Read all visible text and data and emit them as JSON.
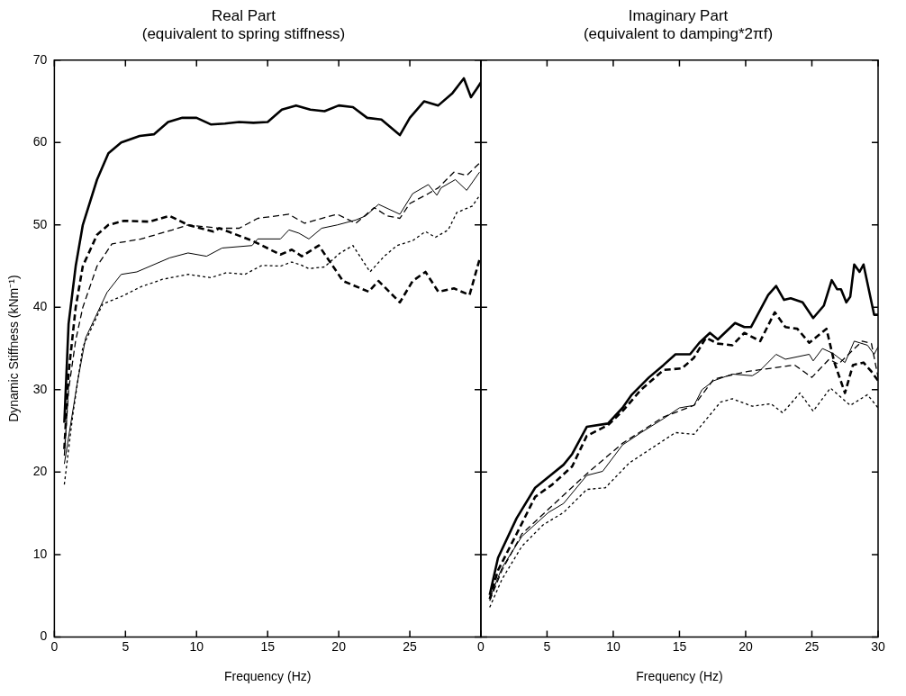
{
  "chart_data": [
    {
      "type": "line",
      "title": "Real Part\n(equivalent to spring stiffness)",
      "xlabel": "Frequency (Hz)",
      "ylabel": "Dynamic Stiffness (kNm⁻¹)",
      "marker": "none",
      "xlim": [
        0,
        30
      ],
      "xticks": [
        0,
        5,
        10,
        15,
        20,
        25,
        {
          "value": 30,
          "label": null
        }
      ],
      "ylim": [
        0,
        70
      ],
      "yticks": [
        0,
        10,
        20,
        30,
        40,
        50,
        60,
        70
      ],
      "series": [
        {
          "color": "#000000",
          "line_style": "solid",
          "x": [
            0.7,
            1,
            1.5,
            2,
            3,
            3.8,
            4.7,
            6,
            7,
            8,
            9,
            10,
            11,
            12,
            13,
            14,
            15,
            16,
            17,
            18,
            19,
            20,
            21,
            22,
            23,
            24.3,
            25,
            26,
            27,
            28,
            28.8,
            29.3,
            29.7,
            30
          ],
          "values": [
            26,
            38,
            45,
            50,
            55.5,
            58.7,
            60,
            60.8,
            61,
            62.5,
            63,
            63,
            62.2,
            62.3,
            62.5,
            62.4,
            62.5,
            64,
            64.5,
            64,
            63.8,
            64.5,
            64.3,
            63,
            62.8,
            60.9,
            63,
            65,
            64.5,
            66,
            67.8,
            65.5,
            66.5,
            67.3
          ]
        },
        {
          "color": "#000000",
          "line_style": "dashed",
          "x": [
            0.7,
            1,
            1.5,
            2,
            3,
            3.8,
            4.9,
            6.7,
            8.1,
            9.4,
            11.2,
            11.6,
            13.9,
            15.9,
            16.7,
            17.4,
            18.6,
            20.3,
            22.1,
            22.8,
            24.3,
            25.2,
            26.1,
            27,
            28.1,
            29.2,
            29.9
          ],
          "values": [
            22.8,
            32,
            40,
            45,
            48.8,
            50,
            50.5,
            50.4,
            51.1,
            50,
            49.2,
            49.6,
            48.1,
            46.4,
            47,
            46.2,
            47.5,
            43.2,
            41.9,
            43.2,
            40.6,
            43.2,
            44.3,
            41.9,
            42.3,
            41.5,
            45.8
          ]
        },
        {
          "color": "#000000",
          "line_style": "solid",
          "x": [
            0.7,
            1.6,
            2.2,
            3.7,
            4.7,
            5.8,
            8.1,
            9.4,
            10.7,
            11.8,
            13.9,
            14.3,
            15.9,
            16.5,
            17.2,
            17.9,
            18.8,
            19.9,
            21.2,
            21.9,
            22.8,
            24.3,
            25.2,
            26.3,
            26.9,
            27.2,
            28.2,
            29,
            29.9
          ],
          "values": [
            21,
            30.7,
            36.3,
            41.8,
            44,
            44.3,
            46,
            46.6,
            46.2,
            47.2,
            47.5,
            48.3,
            48.3,
            49.4,
            49,
            48.3,
            49.6,
            50,
            50.6,
            51.1,
            52.5,
            51.3,
            53.8,
            54.9,
            53.6,
            54.5,
            55.5,
            54.2,
            56.4
          ]
        },
        {
          "color": "#000000",
          "line_style": "dashed",
          "x": [
            0.7,
            1,
            1.5,
            2,
            3,
            4.05,
            6.1,
            8.3,
            9.4,
            11.6,
            13,
            14.3,
            16.5,
            17.6,
            18.8,
            19.9,
            21.2,
            22.5,
            23.4,
            24.3,
            25,
            26.3,
            27,
            28.1,
            29,
            29.9
          ],
          "values": [
            22,
            30,
            36,
            40,
            45,
            47.7,
            48.3,
            49.4,
            50,
            49.6,
            49.6,
            50.8,
            51.3,
            50.2,
            50.8,
            51.3,
            50.2,
            52.1,
            51.1,
            50.8,
            52.6,
            53.8,
            54.5,
            56.4,
            56,
            57.5
          ]
        },
        {
          "color": "#000000",
          "line_style": "dotted",
          "x": [
            0.7,
            1.3,
            2,
            3.4,
            4.7,
            6.1,
            7.6,
            9.4,
            11,
            12.1,
            13.4,
            14.6,
            15.9,
            16.7,
            17.4,
            17.9,
            19,
            20.1,
            21,
            22.2,
            23.2,
            24.1,
            25.2,
            26.1,
            26.8,
            27.7,
            28.3,
            29.4,
            30
          ],
          "values": [
            18.5,
            27,
            35.2,
            40.4,
            41.3,
            42.5,
            43.4,
            44,
            43.6,
            44.2,
            44,
            45.1,
            45,
            45.5,
            45.1,
            44.7,
            44.9,
            46.6,
            47.5,
            44.3,
            46.2,
            47.5,
            48.1,
            49.2,
            48.5,
            49.4,
            51.5,
            52.3,
            53.8
          ]
        }
      ]
    },
    {
      "type": "line",
      "title": "Imaginary Part\n(equivalent to damping*2πf)",
      "xlabel": "Frequency (Hz)",
      "marker": "none",
      "tick_labels": "x",
      "xlim": [
        0,
        30
      ],
      "xticks": [
        0,
        5,
        10,
        15,
        20,
        25,
        30
      ],
      "ylim": [
        0,
        70
      ],
      "yticks": [
        0,
        10,
        20,
        30,
        40,
        50,
        60,
        70
      ],
      "series": [
        {
          "color": "#000000",
          "line_style": "solid",
          "x": [
            0.67,
            1.3,
            2.7,
            4.1,
            5.4,
            6.25,
            6.9,
            8,
            9.6,
            10.7,
            11.4,
            12.7,
            13.8,
            14.7,
            15.8,
            16.5,
            17.3,
            17.9,
            19.2,
            19.9,
            20.4,
            21.7,
            22.3,
            22.9,
            23.4,
            24.3,
            25.1,
            25.9,
            26.5,
            26.9,
            27.2,
            27.6,
            27.9,
            28.2,
            28.6,
            28.9,
            29.7,
            30
          ],
          "values": [
            5.1,
            9.6,
            14.4,
            18.1,
            19.8,
            20.9,
            22.2,
            25.5,
            25.9,
            27.8,
            29.4,
            31.5,
            33,
            34.3,
            34.3,
            35.7,
            36.9,
            36.1,
            38.1,
            37.6,
            37.6,
            41.5,
            42.6,
            40.9,
            41.1,
            40.6,
            38.7,
            40.2,
            43.3,
            42.2,
            42.2,
            40.6,
            41.3,
            45.2,
            44.3,
            45.2,
            39.1,
            39.1
          ]
        },
        {
          "color": "#000000",
          "line_style": "dashed",
          "x": [
            0.67,
            1.3,
            2.7,
            4.1,
            5.4,
            6.9,
            8,
            9.6,
            10.7,
            12.1,
            13.8,
            15.2,
            16.1,
            17,
            17.9,
            19,
            19.9,
            21.1,
            22.2,
            23,
            23.9,
            24.8,
            26.1,
            26.7,
            27.5,
            28.1,
            28.9,
            29.5,
            30
          ],
          "values": [
            4.6,
            8.1,
            12.5,
            17,
            18.5,
            20.7,
            24.4,
            25.7,
            27.4,
            30,
            32.4,
            32.6,
            33.9,
            36.3,
            35.6,
            35.4,
            36.9,
            35.9,
            39.4,
            37.6,
            37.4,
            35.7,
            37.4,
            33.3,
            29.6,
            33,
            33.3,
            32.2,
            31.1
          ]
        },
        {
          "color": "#000000",
          "line_style": "solid",
          "x": [
            0.67,
            1.6,
            3.1,
            5.1,
            6.25,
            8,
            9.2,
            10.7,
            12.1,
            13.8,
            15,
            16.1,
            16.7,
            17.6,
            19,
            20.5,
            21,
            22.3,
            23,
            24.8,
            25.1,
            25.8,
            26.6,
            27.5,
            28.2,
            29.2,
            29.7,
            30
          ],
          "values": [
            4.7,
            8.4,
            12.2,
            15.1,
            16.2,
            19.6,
            20.1,
            23.3,
            24.8,
            26.5,
            27.8,
            28.1,
            30,
            31.1,
            31.9,
            31.7,
            32.2,
            34.3,
            33.7,
            34.3,
            33.5,
            35,
            34.4,
            33.3,
            35.9,
            35.4,
            34.3,
            35.2
          ]
        },
        {
          "color": "#000000",
          "line_style": "dashed",
          "x": [
            0.67,
            1.6,
            3.1,
            5.1,
            8,
            10.7,
            13.8,
            16.1,
            17.6,
            20.1,
            21.9,
            23.7,
            25,
            26.3,
            27,
            28.8,
            29.5,
            30
          ],
          "values": [
            4.4,
            8.1,
            12.5,
            15.5,
            19.8,
            23.5,
            26.7,
            28.1,
            31.3,
            32.2,
            32.6,
            33,
            31.5,
            33.7,
            33.1,
            35.9,
            35.6,
            31.5
          ]
        },
        {
          "color": "#000000",
          "line_style": "dotted",
          "x": [
            0.67,
            1.6,
            3.1,
            4.7,
            6.25,
            8,
            9.4,
            11.2,
            12.9,
            14.7,
            16.1,
            18.1,
            19,
            20.5,
            21.9,
            22.8,
            24.1,
            25.1,
            26.4,
            27.9,
            29.2,
            30
          ],
          "values": [
            3.6,
            7,
            11,
            13.6,
            15.1,
            17.9,
            18.1,
            21.1,
            22.9,
            24.8,
            24.6,
            28.5,
            28.9,
            28,
            28.3,
            27.2,
            29.6,
            27.4,
            30.2,
            28.1,
            29.4,
            27.8
          ]
        }
      ]
    }
  ]
}
